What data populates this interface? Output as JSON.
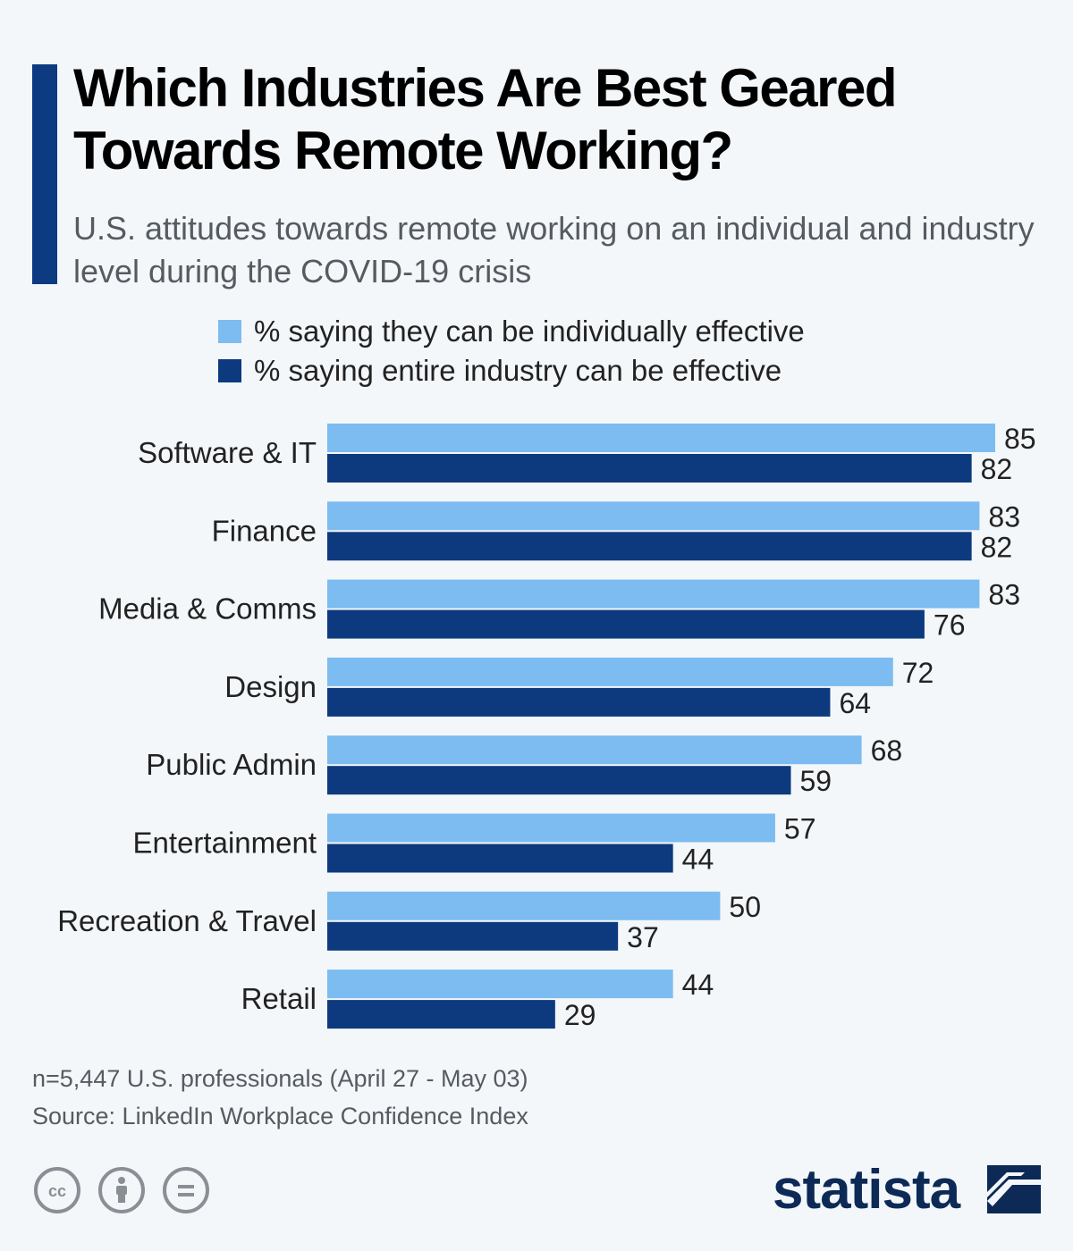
{
  "title": "Which Industries Are Best Geared Towards Remote Working?",
  "subtitle": "U.S. attitudes towards remote working on an individual and industry level during the COVID-19 crisis",
  "legend": {
    "individual": "% saying they can be individually effective",
    "industry": "% saying entire industry can be effective"
  },
  "colors": {
    "accent": "#0d3b82",
    "individual": "#7cbcf0",
    "industry": "#0d3a7e",
    "brand": "#0d2a56"
  },
  "chart_data": {
    "type": "bar",
    "orientation": "horizontal",
    "categories": [
      "Software & IT",
      "Finance",
      "Media & Comms",
      "Design",
      "Public Admin",
      "Entertainment",
      "Recreation & Travel",
      "Retail"
    ],
    "series": [
      {
        "name": "% saying they can be individually effective",
        "values": [
          85,
          83,
          83,
          72,
          68,
          57,
          50,
          44
        ]
      },
      {
        "name": "% saying entire industry can be effective",
        "values": [
          82,
          82,
          76,
          64,
          59,
          44,
          37,
          29
        ]
      }
    ],
    "xlim": [
      0,
      85
    ],
    "grid": false,
    "legend_position": "top"
  },
  "notes": {
    "sample": "n=5,447 U.S. professionals (April 27 - May 03)",
    "source": "Source: LinkedIn Workplace Confidence Index"
  },
  "footer": {
    "brand": "statista",
    "license_icons": [
      "cc-icon",
      "by-icon",
      "nd-icon"
    ]
  }
}
